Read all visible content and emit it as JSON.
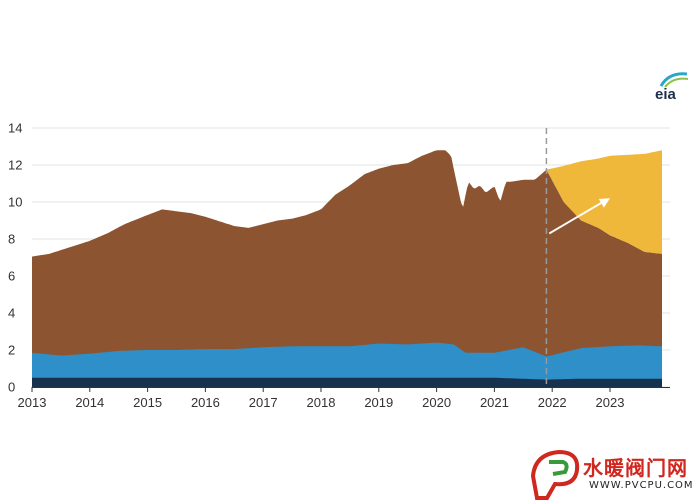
{
  "logo": {
    "text": "eia"
  },
  "watermark": {
    "text": "水暖阀门网",
    "url": "WWW.PVCPU.COM"
  },
  "colors": {
    "brown": "#8c5430",
    "blue": "#2e8fc9",
    "navy": "#17324f",
    "yellow": "#f0b83a",
    "grid": "#e3e3e3",
    "axis": "#333333",
    "divider": "#9a9a9a",
    "arrow": "#ffffff"
  },
  "chart_data": {
    "type": "area",
    "xlim": [
      2013,
      2024
    ],
    "ylim": [
      0,
      14
    ],
    "yticks": [
      0,
      2,
      4,
      6,
      8,
      10,
      12,
      14
    ],
    "xticks": [
      2013,
      2014,
      2015,
      2016,
      2017,
      2018,
      2019,
      2020,
      2021,
      2022,
      2023
    ],
    "xtick_labels": [
      "2013",
      "2014",
      "2015",
      "2016",
      "2017",
      "2018",
      "2019",
      "2020",
      "2021",
      "2022",
      "2023"
    ],
    "ytick_labels": [
      "0",
      "2",
      "4",
      "6",
      "8",
      "10",
      "12",
      "14"
    ],
    "grid": "horizontal",
    "divider_x": 2021.9,
    "stacked_series": [
      {
        "color": "navy",
        "x": [
          2013,
          2014,
          2015,
          2016,
          2017,
          2018,
          2019,
          2020,
          2021,
          2021.9,
          2022.5,
          2023,
          2023.9
        ],
        "y": [
          0.5,
          0.5,
          0.5,
          0.5,
          0.5,
          0.5,
          0.5,
          0.5,
          0.5,
          0.4,
          0.45,
          0.45,
          0.45
        ]
      },
      {
        "color": "blue",
        "x": [
          2013,
          2013.5,
          2014,
          2014.5,
          2015,
          2015.5,
          2016,
          2016.5,
          2017,
          2017.5,
          2018,
          2018.5,
          2019,
          2019.5,
          2020,
          2020.3,
          2020.5,
          2021,
          2021.5,
          2021.9,
          2022.5,
          2023,
          2023.5,
          2023.9
        ],
        "y": [
          1.85,
          1.7,
          1.8,
          1.95,
          2.0,
          2.0,
          2.05,
          2.05,
          2.15,
          2.2,
          2.2,
          2.2,
          2.35,
          2.3,
          2.4,
          2.3,
          1.85,
          1.85,
          2.15,
          1.65,
          2.1,
          2.2,
          2.25,
          2.2
        ]
      },
      {
        "color": "brown",
        "x": [
          2013,
          2013.3,
          2013.6,
          2014,
          2014.3,
          2014.6,
          2015,
          2015.25,
          2015.5,
          2015.75,
          2016,
          2016.3,
          2016.5,
          2016.75,
          2017,
          2017.25,
          2017.5,
          2017.75,
          2018,
          2018.25,
          2018.5,
          2018.75,
          2019,
          2019.25,
          2019.5,
          2019.75,
          2020,
          2020.15,
          2020.25,
          2020.35,
          2020.45,
          2020.55,
          2020.65,
          2020.75,
          2020.85,
          2021,
          2021.1,
          2021.2,
          2021.3,
          2021.5,
          2021.7,
          2021.9,
          2022.2,
          2022.5,
          2022.8,
          2023,
          2023.3,
          2023.6,
          2023.9
        ],
        "y": [
          7.05,
          7.2,
          7.5,
          7.9,
          8.3,
          8.8,
          9.3,
          9.6,
          9.5,
          9.4,
          9.2,
          8.9,
          8.7,
          8.6,
          8.8,
          9.0,
          9.1,
          9.3,
          9.6,
          10.4,
          10.9,
          11.5,
          11.8,
          12.0,
          12.1,
          12.5,
          12.8,
          12.8,
          12.5,
          11.0,
          9.6,
          11.1,
          10.7,
          10.9,
          10.5,
          10.85,
          10.0,
          11.1,
          11.1,
          11.2,
          11.2,
          11.75,
          10.0,
          9.0,
          8.6,
          8.2,
          7.8,
          7.3,
          7.2
        ]
      },
      {
        "color": "yellow",
        "x": [
          2021.9,
          2022.2,
          2022.5,
          2022.8,
          2023,
          2023.3,
          2023.6,
          2023.9
        ],
        "y": [
          11.75,
          11.95,
          12.2,
          12.35,
          12.5,
          12.55,
          12.6,
          12.8
        ]
      }
    ],
    "arrow": {
      "from": [
        2021.95,
        8.3
      ],
      "to": [
        2023.0,
        10.2
      ]
    }
  }
}
